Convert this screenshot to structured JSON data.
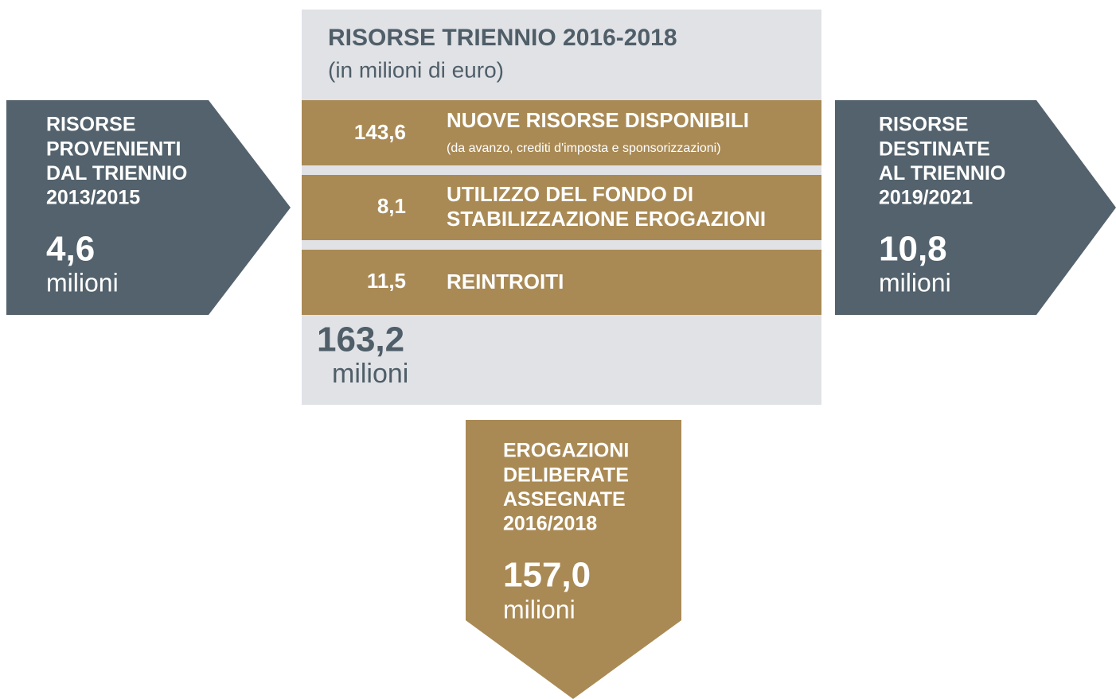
{
  "center": {
    "title": "RISORSE TRIENNIO 2016-2018",
    "subtitle": "(in milioni di euro)",
    "rows": [
      {
        "value": "143,6",
        "label_lines": [
          "NUOVE RISORSE DISPONIBILI"
        ],
        "note": "(da avanzo, crediti d'imposta e sponsorizzazioni)"
      },
      {
        "value": "8,1",
        "label_lines": [
          "UTILIZZO DEL FONDO DI",
          "STABILIZZAZIONE EROGAZIONI"
        ]
      },
      {
        "value": "11,5",
        "label_lines": [
          "REINTROITI"
        ]
      }
    ],
    "total": {
      "value": "163,2",
      "unit": "milioni"
    }
  },
  "left": {
    "label_lines": [
      "RISORSE",
      "PROVENIENTI",
      "DAL TRIENNIO",
      "2013/2015"
    ],
    "value": "4,6",
    "unit": "milioni"
  },
  "right": {
    "label_lines": [
      "RISORSE",
      "DESTINATE",
      "AL TRIENNIO",
      "2019/2021"
    ],
    "value": "10,8",
    "unit": "milioni"
  },
  "bottom": {
    "label_lines": [
      "EROGAZIONI",
      "DELIBERATE",
      "ASSEGNATE",
      "2016/2018"
    ],
    "value": "157,0",
    "unit": "milioni"
  }
}
